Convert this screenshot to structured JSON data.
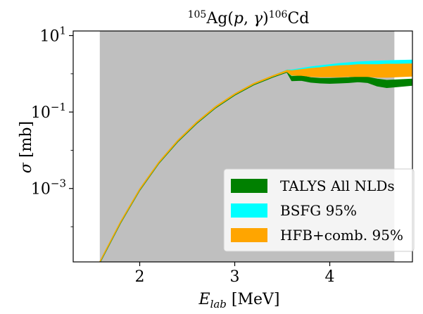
{
  "chart_data": {
    "type": "area",
    "title": "105Ag(p, γ)106Cd",
    "xlabel": "Elab [MeV]",
    "ylabel": "σ [mb]",
    "xlim": [
      1.3,
      4.87
    ],
    "yscale": "log",
    "ylim_log10": [
      -4.92,
      1.12
    ],
    "x_ticks": [
      {
        "value": 2,
        "label": "2"
      },
      {
        "value": 3,
        "label": "3"
      },
      {
        "value": 4,
        "label": "4"
      }
    ],
    "y_ticks": [
      {
        "value": 1,
        "base": "10",
        "exp": "1"
      },
      {
        "value": -1,
        "base": "10",
        "exp": "−1"
      },
      {
        "value": -3,
        "base": "10",
        "exp": "−3"
      }
    ],
    "shaded_region": {
      "x_start": 1.58,
      "x_end": 4.68,
      "color": "#bfbfbf"
    },
    "series": [
      {
        "name": "TALYS All NLDs",
        "color": "#008000",
        "x": [
          1.58,
          1.8,
          2.0,
          2.2,
          2.4,
          2.6,
          2.8,
          3.0,
          3.2,
          3.4,
          3.55,
          3.6,
          3.7,
          3.8,
          3.9,
          4.0,
          4.1,
          4.2,
          4.3,
          4.4,
          4.5,
          4.6,
          4.7,
          4.87
        ],
        "log_lower": [
          -4.95,
          -3.9,
          -3.05,
          -2.35,
          -1.78,
          -1.3,
          -0.89,
          -0.56,
          -0.29,
          -0.09,
          0.04,
          -0.18,
          -0.17,
          -0.22,
          -0.24,
          -0.25,
          -0.24,
          -0.23,
          -0.21,
          -0.23,
          -0.32,
          -0.36,
          -0.34,
          -0.3
        ],
        "log_upper": [
          -4.92,
          -3.87,
          -3.02,
          -2.32,
          -1.75,
          -1.27,
          -0.86,
          -0.53,
          -0.26,
          -0.06,
          0.08,
          -0.06,
          -0.05,
          -0.1,
          -0.12,
          -0.12,
          -0.11,
          -0.1,
          -0.08,
          -0.09,
          -0.14,
          -0.17,
          -0.16,
          -0.14
        ]
      },
      {
        "name": "BSFG 95%",
        "color": "#00ffff",
        "x": [
          1.58,
          1.8,
          2.0,
          2.2,
          2.4,
          2.6,
          2.8,
          3.0,
          3.2,
          3.4,
          3.55,
          3.6,
          3.7,
          3.8,
          3.9,
          4.0,
          4.1,
          4.2,
          4.3,
          4.4,
          4.5,
          4.6,
          4.7,
          4.87
        ],
        "log_lower": [
          -4.93,
          -3.88,
          -3.03,
          -2.33,
          -1.76,
          -1.28,
          -0.87,
          -0.54,
          -0.27,
          -0.07,
          0.06,
          -0.05,
          -0.03,
          -0.01,
          0.01,
          0.03,
          0.05,
          0.07,
          0.09,
          0.1,
          0.11,
          0.13,
          0.14,
          0.16
        ],
        "log_upper": [
          -4.91,
          -3.86,
          -3.01,
          -2.31,
          -1.74,
          -1.26,
          -0.85,
          -0.52,
          -0.25,
          -0.05,
          0.1,
          0.1,
          0.14,
          0.18,
          0.21,
          0.24,
          0.27,
          0.29,
          0.31,
          0.32,
          0.33,
          0.34,
          0.35,
          0.36
        ]
      },
      {
        "name": "HFB+comb. 95%",
        "color": "#ffa500",
        "x": [
          1.58,
          1.8,
          2.0,
          2.2,
          2.4,
          2.6,
          2.8,
          3.0,
          3.2,
          3.4,
          3.55,
          3.6,
          3.7,
          3.8,
          3.9,
          4.0,
          4.1,
          4.2,
          4.3,
          4.4,
          4.5,
          4.6,
          4.7,
          4.87
        ],
        "log_lower": [
          -4.93,
          -3.88,
          -3.03,
          -2.33,
          -1.76,
          -1.28,
          -0.87,
          -0.54,
          -0.27,
          -0.07,
          0.06,
          -0.04,
          -0.04,
          -0.07,
          -0.08,
          -0.08,
          -0.08,
          -0.07,
          -0.07,
          -0.07,
          -0.09,
          -0.09,
          -0.08,
          -0.06
        ],
        "log_upper": [
          -4.91,
          -3.86,
          -3.01,
          -2.31,
          -1.74,
          -1.26,
          -0.85,
          -0.52,
          -0.25,
          -0.05,
          0.09,
          0.08,
          0.11,
          0.14,
          0.16,
          0.19,
          0.21,
          0.22,
          0.24,
          0.24,
          0.24,
          0.25,
          0.25,
          0.26
        ]
      }
    ],
    "legend": {
      "position": "lower-right"
    }
  }
}
